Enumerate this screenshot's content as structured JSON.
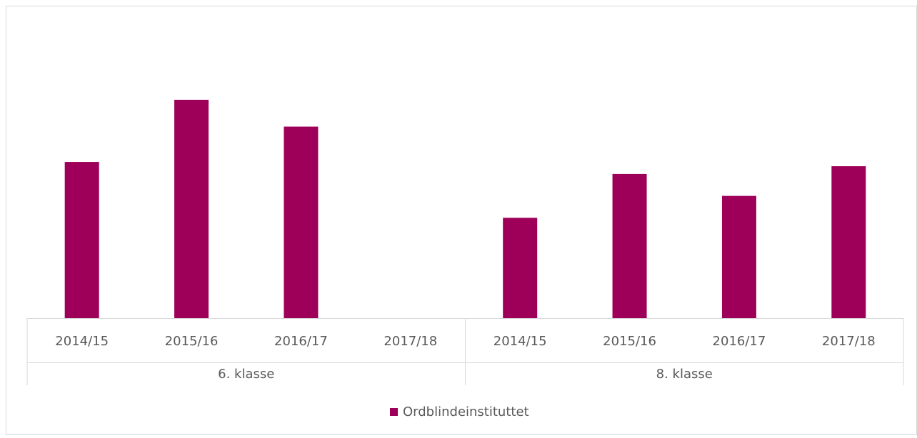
{
  "chart_data": {
    "type": "bar",
    "groups": [
      "6. klasse",
      "8. klasse"
    ],
    "categories": [
      "2014/15",
      "2015/16",
      "2016/17",
      "2017/18",
      "2014/15",
      "2015/16",
      "2016/17",
      "2017/18"
    ],
    "series": [
      {
        "name": "Ordblindeinstituttet",
        "color": "#9e0059",
        "values": [
          221,
          309,
          271,
          null,
          142,
          204,
          173,
          215
        ]
      }
    ],
    "ylim": [
      0,
      430
    ],
    "legend": "bottom",
    "grid": false
  }
}
